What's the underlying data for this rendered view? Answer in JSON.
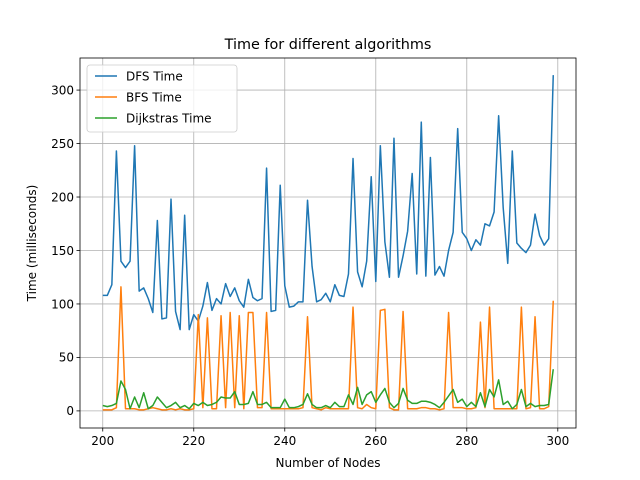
{
  "chart_data": {
    "type": "line",
    "title": "Time for different algorithms",
    "xlabel": "Number of Nodes",
    "ylabel": "Time (milliseconds)",
    "xlim": [
      195,
      304
    ],
    "ylim": [
      -16,
      330
    ],
    "xticks": [
      200,
      220,
      240,
      260,
      280,
      300
    ],
    "yticks": [
      0,
      50,
      100,
      150,
      200,
      250,
      300
    ],
    "grid": true,
    "legend_position": "top-left",
    "x": [
      200,
      201,
      202,
      203,
      204,
      205,
      206,
      207,
      208,
      209,
      210,
      211,
      212,
      213,
      214,
      215,
      216,
      217,
      218,
      219,
      220,
      221,
      222,
      223,
      224,
      225,
      226,
      227,
      228,
      229,
      230,
      231,
      232,
      233,
      234,
      235,
      236,
      237,
      238,
      239,
      240,
      241,
      242,
      243,
      244,
      245,
      246,
      247,
      248,
      249,
      250,
      251,
      252,
      253,
      254,
      255,
      256,
      257,
      258,
      259,
      260,
      261,
      262,
      263,
      264,
      265,
      266,
      267,
      268,
      269,
      270,
      271,
      272,
      273,
      274,
      275,
      276,
      277,
      278,
      279,
      280,
      281,
      282,
      283,
      284,
      285,
      286,
      287,
      288,
      289,
      290,
      291,
      292,
      293,
      294,
      295,
      296,
      297,
      298,
      299
    ],
    "series": [
      {
        "name": "DFS Time",
        "color": "#1f77b4",
        "values": [
          108,
          108,
          118,
          243,
          140,
          134,
          140,
          248,
          112,
          115,
          105,
          92,
          178,
          86,
          87,
          198,
          93,
          76,
          183,
          76,
          90,
          84,
          98,
          120,
          94,
          105,
          100,
          119,
          107,
          115,
          103,
          97,
          123,
          106,
          103,
          105,
          227,
          93,
          94,
          211,
          117,
          97,
          98,
          102,
          102,
          197,
          135,
          102,
          104,
          110,
          102,
          118,
          108,
          107,
          128,
          236,
          130,
          116,
          140,
          219,
          121,
          248,
          158,
          125,
          255,
          125,
          145,
          168,
          222,
          128,
          270,
          126,
          237,
          127,
          135,
          126,
          150,
          167,
          264,
          167,
          161,
          150,
          160,
          155,
          175,
          173,
          186,
          276,
          190,
          138,
          243,
          157,
          152,
          148,
          155,
          184,
          164,
          155,
          161,
          314
        ]
      },
      {
        "name": "BFS Time",
        "color": "#ff7f0e",
        "values": [
          1,
          1,
          1,
          3,
          116,
          2,
          2,
          2,
          1,
          1,
          2,
          3,
          2,
          1,
          1,
          2,
          1,
          2,
          1,
          1,
          2,
          90,
          3,
          87,
          2,
          2,
          89,
          3,
          92,
          3,
          89,
          2,
          92,
          92,
          3,
          3,
          92,
          2,
          2,
          2,
          2,
          2,
          2,
          2,
          3,
          88,
          3,
          2,
          1,
          3,
          2,
          2,
          2,
          2,
          2,
          97,
          3,
          2,
          6,
          3,
          2,
          94,
          95,
          3,
          1,
          1,
          93,
          2,
          2,
          2,
          3,
          3,
          2,
          2,
          1,
          2,
          92,
          3,
          3,
          3,
          2,
          2,
          3,
          83,
          3,
          97,
          2,
          2,
          2,
          2,
          2,
          2,
          97,
          2,
          3,
          88,
          2,
          2,
          4,
          103
        ]
      },
      {
        "name": "Dijkstras Time",
        "color": "#2ca02c",
        "values": [
          5,
          4,
          5,
          7,
          28,
          20,
          2,
          13,
          3,
          17,
          2,
          5,
          13,
          8,
          3,
          5,
          8,
          3,
          5,
          2,
          7,
          5,
          8,
          5,
          6,
          8,
          13,
          12,
          12,
          18,
          6,
          6,
          7,
          18,
          6,
          6,
          8,
          3,
          3,
          3,
          11,
          3,
          3,
          4,
          6,
          16,
          6,
          3,
          3,
          5,
          3,
          8,
          4,
          4,
          15,
          6,
          22,
          6,
          15,
          18,
          8,
          15,
          21,
          8,
          3,
          7,
          21,
          10,
          7,
          7,
          9,
          9,
          8,
          6,
          3,
          8,
          14,
          20,
          8,
          11,
          4,
          8,
          4,
          17,
          4,
          20,
          13,
          29,
          6,
          9,
          2,
          6,
          20,
          4,
          7,
          4,
          5,
          5,
          6,
          39
        ]
      }
    ]
  }
}
